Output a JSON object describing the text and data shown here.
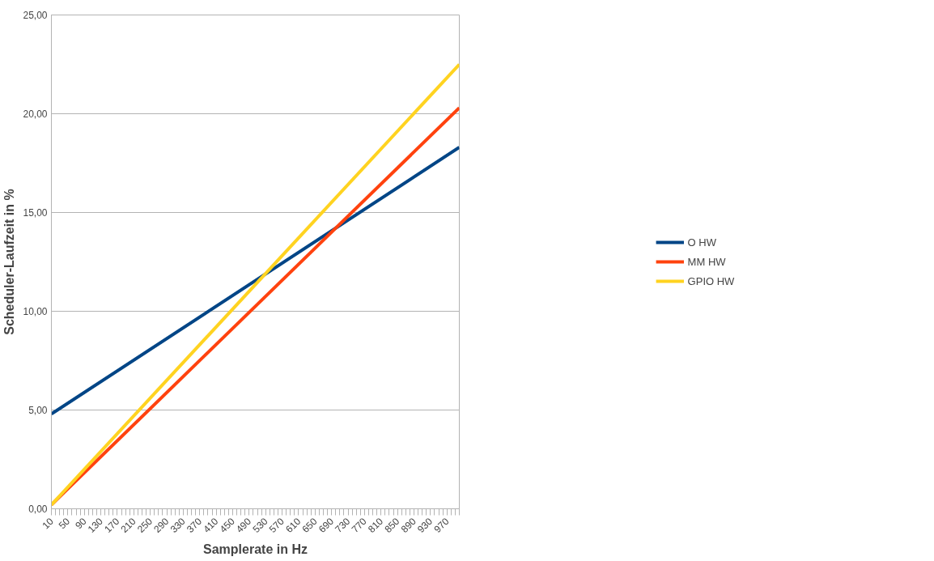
{
  "chart_data": {
    "type": "line",
    "xlabel": "Samplerate in Hz",
    "ylabel": "Scheduler-Laufzeit in %",
    "xlim": [
      10,
      1000
    ],
    "ylim": [
      0,
      25
    ],
    "yticks": [
      {
        "value": 0,
        "label": "0,00"
      },
      {
        "value": 5,
        "label": "5,00"
      },
      {
        "value": 10,
        "label": "10,00"
      },
      {
        "value": 15,
        "label": "15,00"
      },
      {
        "value": 20,
        "label": "20,00"
      },
      {
        "value": 25,
        "label": "25,00"
      }
    ],
    "xticks": [
      10,
      {
        "value": 20,
        "label": null
      },
      {
        "value": 30,
        "label": null
      },
      {
        "value": 40,
        "label": null
      },
      50,
      {
        "value": 60,
        "label": null
      },
      {
        "value": 70,
        "label": null
      },
      {
        "value": 80,
        "label": null
      },
      90,
      {
        "value": 100,
        "label": null
      },
      {
        "value": 110,
        "label": null
      },
      {
        "value": 120,
        "label": null
      },
      130,
      {
        "value": 140,
        "label": null
      },
      {
        "value": 150,
        "label": null
      },
      {
        "value": 160,
        "label": null
      },
      170,
      {
        "value": 180,
        "label": null
      },
      {
        "value": 190,
        "label": null
      },
      {
        "value": 200,
        "label": null
      },
      210,
      {
        "value": 220,
        "label": null
      },
      {
        "value": 230,
        "label": null
      },
      {
        "value": 240,
        "label": null
      },
      250,
      {
        "value": 260,
        "label": null
      },
      {
        "value": 270,
        "label": null
      },
      {
        "value": 280,
        "label": null
      },
      290,
      {
        "value": 300,
        "label": null
      },
      {
        "value": 310,
        "label": null
      },
      {
        "value": 320,
        "label": null
      },
      330,
      {
        "value": 340,
        "label": null
      },
      {
        "value": 350,
        "label": null
      },
      {
        "value": 360,
        "label": null
      },
      370,
      {
        "value": 380,
        "label": null
      },
      {
        "value": 390,
        "label": null
      },
      {
        "value": 400,
        "label": null
      },
      410,
      {
        "value": 420,
        "label": null
      },
      {
        "value": 430,
        "label": null
      },
      {
        "value": 440,
        "label": null
      },
      450,
      {
        "value": 460,
        "label": null
      },
      {
        "value": 470,
        "label": null
      },
      {
        "value": 480,
        "label": null
      },
      490,
      {
        "value": 500,
        "label": null
      },
      {
        "value": 510,
        "label": null
      },
      {
        "value": 520,
        "label": null
      },
      530,
      {
        "value": 540,
        "label": null
      },
      {
        "value": 550,
        "label": null
      },
      {
        "value": 560,
        "label": null
      },
      570,
      {
        "value": 580,
        "label": null
      },
      {
        "value": 590,
        "label": null
      },
      {
        "value": 600,
        "label": null
      },
      610,
      {
        "value": 620,
        "label": null
      },
      {
        "value": 630,
        "label": null
      },
      {
        "value": 640,
        "label": null
      },
      650,
      {
        "value": 660,
        "label": null
      },
      {
        "value": 670,
        "label": null
      },
      {
        "value": 680,
        "label": null
      },
      690,
      {
        "value": 700,
        "label": null
      },
      {
        "value": 710,
        "label": null
      },
      {
        "value": 720,
        "label": null
      },
      730,
      {
        "value": 740,
        "label": null
      },
      {
        "value": 750,
        "label": null
      },
      {
        "value": 760,
        "label": null
      },
      770,
      {
        "value": 780,
        "label": null
      },
      {
        "value": 790,
        "label": null
      },
      {
        "value": 800,
        "label": null
      },
      810,
      {
        "value": 820,
        "label": null
      },
      {
        "value": 830,
        "label": null
      },
      {
        "value": 840,
        "label": null
      },
      850,
      {
        "value": 860,
        "label": null
      },
      {
        "value": 870,
        "label": null
      },
      {
        "value": 880,
        "label": null
      },
      890,
      {
        "value": 900,
        "label": null
      },
      {
        "value": 910,
        "label": null
      },
      {
        "value": 920,
        "label": null
      },
      930,
      {
        "value": 940,
        "label": null
      },
      {
        "value": 950,
        "label": null
      },
      {
        "value": 960,
        "label": null
      },
      970,
      {
        "value": 980,
        "label": null
      },
      {
        "value": 990,
        "label": null
      },
      {
        "value": 1000,
        "label": null
      }
    ],
    "grid": "y",
    "legend": "right",
    "marker": "none",
    "line_style": "solid",
    "x": [
      10,
      1000
    ],
    "series": [
      {
        "name": "O HW",
        "color": "#004586",
        "values": [
          4.8,
          18.3
        ]
      },
      {
        "name": "MM HW",
        "color": "#ff420e",
        "values": [
          0.2,
          20.3
        ]
      },
      {
        "name": "GPIO HW",
        "color": "#ffd320",
        "values": [
          0.2,
          22.5
        ]
      }
    ]
  }
}
